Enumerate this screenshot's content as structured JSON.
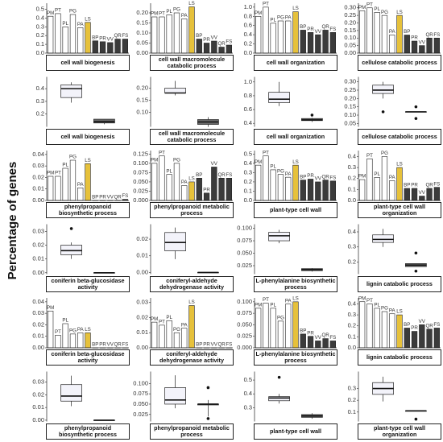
{
  "ylabel": "Percentage of genes",
  "chart_data": [
    {
      "type": "bar",
      "title": "cell wall biogenesis",
      "categories": [
        "PM",
        "PT",
        "PL",
        "PG",
        "PA",
        "LS",
        "BP",
        "PR",
        "VV",
        "QR",
        "FS"
      ],
      "values": [
        0.42,
        0.45,
        0.3,
        0.44,
        0.29,
        0.35,
        0.14,
        0.13,
        0.12,
        0.16,
        0.16
      ],
      "colors": [
        "#ffffff",
        "#ffffff",
        "#ffffff",
        "#ffffff",
        "#ffffff",
        "#e6c13b",
        "#3b3b3b",
        "#3b3b3b",
        "#3b3b3b",
        "#3b3b3b",
        "#3b3b3b"
      ],
      "ylim": [
        0,
        0.55
      ],
      "yticks": [
        {
          "value": 0,
          "label": "0.0"
        },
        0.1,
        0.2,
        0.3,
        0.4,
        0.5
      ]
    },
    {
      "type": "bar",
      "title": "cell wall macromolecule catabolic process",
      "categories": [
        "PM",
        "PT",
        "PL",
        "PG",
        "PA",
        "LS",
        "BP",
        "PR",
        "VV",
        "QR",
        "FS"
      ],
      "values": [
        0.18,
        0.18,
        0.19,
        0.2,
        0.17,
        0.23,
        0.07,
        0.05,
        0.06,
        0.03,
        0.04
      ],
      "colors": [
        "#ffffff",
        "#ffffff",
        "#ffffff",
        "#ffffff",
        "#ffffff",
        "#e6c13b",
        "#3b3b3b",
        "#3b3b3b",
        "#3b3b3b",
        "#3b3b3b",
        "#3b3b3b"
      ],
      "ylim": [
        0,
        0.24
      ],
      "yticks": [
        {
          "value": 0,
          "label": "0.00"
        },
        0.05,
        {
          "value": 0.1,
          "label": "0.10"
        },
        0.15,
        {
          "value": 0.2,
          "label": "0.20"
        }
      ]
    },
    {
      "type": "bar",
      "title": "cell wall organization",
      "categories": [
        "PM",
        "PT",
        "PL",
        "PG",
        "PA",
        "LS",
        "BP",
        "PR",
        "VV",
        "QR",
        "FS"
      ],
      "values": [
        0.8,
        1.0,
        0.65,
        0.7,
        0.7,
        0.9,
        0.5,
        0.45,
        0.4,
        0.5,
        0.45
      ],
      "colors": [
        "#ffffff",
        "#ffffff",
        "#ffffff",
        "#ffffff",
        "#ffffff",
        "#e6c13b",
        "#3b3b3b",
        "#3b3b3b",
        "#3b3b3b",
        "#3b3b3b",
        "#3b3b3b"
      ],
      "ylim": [
        0,
        1.05
      ],
      "yticks": [
        {
          "value": 0,
          "label": "0.0"
        },
        0.2,
        0.4,
        0.6,
        0.8,
        {
          "value": 1,
          "label": "1.0"
        }
      ]
    },
    {
      "type": "bar",
      "title": "cellulose catabolic process",
      "categories": [
        "PM",
        "PT",
        "PL",
        "PG",
        "PA",
        "LS",
        "BP",
        "PR",
        "VV",
        "QR",
        "FS"
      ],
      "values": [
        0.28,
        0.3,
        0.27,
        0.25,
        0.12,
        0.25,
        0.12,
        0.08,
        0.05,
        0.1,
        0.1
      ],
      "colors": [
        "#ffffff",
        "#ffffff",
        "#ffffff",
        "#ffffff",
        "#ffffff",
        "#e6c13b",
        "#3b3b3b",
        "#3b3b3b",
        "#3b3b3b",
        "#3b3b3b",
        "#3b3b3b"
      ],
      "ylim": [
        0,
        0.32
      ],
      "yticks": [
        {
          "value": 0,
          "label": "0.00"
        },
        0.05,
        {
          "value": 0.1,
          "label": "0.10"
        },
        0.15,
        {
          "value": 0.2,
          "label": "0.20"
        },
        0.25,
        {
          "value": 0.3,
          "label": "0.30"
        }
      ]
    },
    {
      "type": "box",
      "title": "cell wall biogenesis",
      "boxes": [
        {
          "color": "#f3f3fa",
          "min": 0.29,
          "q1": 0.33,
          "median": 0.4,
          "q3": 0.43,
          "max": 0.45,
          "outliers": []
        },
        {
          "color": "#6b6b6b",
          "min": 0.12,
          "q1": 0.13,
          "median": 0.14,
          "q3": 0.16,
          "max": 0.16,
          "outliers": []
        }
      ],
      "ylim": [
        0.1,
        0.48
      ],
      "yticks": [
        0.2,
        0.3,
        0.4
      ]
    },
    {
      "type": "box",
      "title": "cell wall macromolecule catabolic process",
      "boxes": [
        {
          "color": "#f3f3fa",
          "min": 0.17,
          "q1": 0.18,
          "median": 0.18,
          "q3": 0.2,
          "max": 0.23,
          "outliers": []
        },
        {
          "color": "#6b6b6b",
          "min": 0.04,
          "q1": 0.05,
          "median": 0.06,
          "q3": 0.07,
          "max": 0.08,
          "outliers": []
        }
      ],
      "ylim": [
        0.04,
        0.24
      ],
      "yticks": [
        {
          "value": 0.1,
          "label": "0.10"
        },
        0.15,
        {
          "value": 0.2,
          "label": "0.20"
        }
      ]
    },
    {
      "type": "box",
      "title": "cell wall organization",
      "boxes": [
        {
          "color": "#f3f3fa",
          "min": 0.65,
          "q1": 0.7,
          "median": 0.75,
          "q3": 0.85,
          "max": 1.0,
          "outliers": []
        },
        {
          "color": "#6b6b6b",
          "min": 0.42,
          "q1": 0.44,
          "median": 0.45,
          "q3": 0.47,
          "max": 0.48,
          "outliers": [
            0.52
          ]
        }
      ],
      "ylim": [
        0.35,
        1.05
      ],
      "yticks": [
        0.4,
        0.6,
        0.8,
        {
          "value": 1,
          "label": "1.0"
        }
      ]
    },
    {
      "type": "box",
      "title": "cellulose catabolic process",
      "boxes": [
        {
          "color": "#f3f3fa",
          "min": 0.2,
          "q1": 0.23,
          "median": 0.25,
          "q3": 0.28,
          "max": 0.3,
          "outliers": [
            0.12
          ]
        },
        {
          "color": "#6b6b6b",
          "min": 0.12,
          "q1": 0.12,
          "median": 0.12,
          "q3": 0.12,
          "max": 0.12,
          "outliers": [
            0.08,
            0.15
          ]
        }
      ],
      "ylim": [
        0.03,
        0.32
      ],
      "yticks": [
        0.05,
        {
          "value": 0.1,
          "label": "0.10"
        },
        0.15,
        {
          "value": 0.2,
          "label": "0.20"
        },
        0.25,
        {
          "value": 0.3,
          "label": "0.30"
        }
      ]
    },
    {
      "type": "bar",
      "title": "phenylpropanoid biosynthetic process",
      "categories": [
        "PM",
        "PT",
        "PL",
        "PG",
        "PA",
        "LS",
        "BP",
        "PR",
        "VV",
        "QR",
        "FS"
      ],
      "values": [
        0.021,
        0.021,
        0.028,
        0.035,
        0.011,
        0.032,
        0,
        0,
        0,
        0,
        0.001
      ],
      "colors": [
        "#ffffff",
        "#ffffff",
        "#ffffff",
        "#ffffff",
        "#ffffff",
        "#e6c13b",
        "#3b3b3b",
        "#3b3b3b",
        "#3b3b3b",
        "#3b3b3b",
        "#3b3b3b"
      ],
      "ylim": [
        0,
        0.042
      ],
      "yticks": [
        {
          "value": 0,
          "label": "0.00"
        },
        0.01,
        0.02,
        0.03,
        0.04
      ]
    },
    {
      "type": "bar",
      "title": "phenylpropanoid metabolic process",
      "categories": [
        "PM",
        "PT",
        "PL",
        "PG",
        "PA",
        "LS",
        "BP",
        "PR",
        "VV",
        "QR",
        "FS"
      ],
      "values": [
        0.1,
        0.12,
        0.07,
        0.1,
        0.04,
        0.05,
        0.06,
        0.02,
        0.09,
        0.06,
        0.06
      ],
      "colors": [
        "#ffffff",
        "#ffffff",
        "#ffffff",
        "#ffffff",
        "#ffffff",
        "#e6c13b",
        "#3b3b3b",
        "#3b3b3b",
        "#3b3b3b",
        "#3b3b3b",
        "#3b3b3b"
      ],
      "ylim": [
        0,
        0.13
      ],
      "yticks": [
        {
          "value": 0,
          "label": "0.000"
        },
        0.025,
        {
          "value": 0.05,
          "label": "0.050"
        },
        0.075,
        {
          "value": 0.1,
          "label": "0.100"
        },
        0.125
      ]
    },
    {
      "type": "bar",
      "title": "plant-type cell wall",
      "categories": [
        "PM",
        "PT",
        "PL",
        "PG",
        "PA",
        "LS",
        "BP",
        "PR",
        "VV",
        "QR",
        "FS"
      ],
      "values": [
        0.38,
        0.48,
        0.33,
        0.28,
        0.25,
        0.38,
        0.22,
        0.23,
        0.2,
        0.22,
        0.21
      ],
      "colors": [
        "#ffffff",
        "#ffffff",
        "#ffffff",
        "#ffffff",
        "#ffffff",
        "#e6c13b",
        "#3b3b3b",
        "#3b3b3b",
        "#3b3b3b",
        "#3b3b3b",
        "#3b3b3b"
      ],
      "ylim": [
        0,
        0.52
      ],
      "yticks": [
        {
          "value": 0,
          "label": "0.0"
        },
        0.1,
        0.2,
        0.3,
        0.4,
        0.5
      ]
    },
    {
      "type": "bar",
      "title": "plant-type cell wall organization",
      "categories": [
        "PM",
        "PT",
        "PL",
        "PG",
        "PA",
        "LS",
        "BP",
        "PR",
        "VV",
        "QR",
        "FS"
      ],
      "values": [
        0.19,
        0.38,
        0.21,
        0.4,
        0.18,
        0.3,
        0.11,
        0.11,
        0.04,
        0.11,
        0.12
      ],
      "colors": [
        "#ffffff",
        "#ffffff",
        "#ffffff",
        "#ffffff",
        "#ffffff",
        "#e6c13b",
        "#3b3b3b",
        "#3b3b3b",
        "#3b3b3b",
        "#3b3b3b",
        "#3b3b3b"
      ],
      "ylim": [
        0,
        0.44
      ],
      "yticks": [
        {
          "value": 0,
          "label": "0.0"
        },
        0.1,
        0.2,
        0.3,
        0.4
      ]
    },
    {
      "type": "box",
      "title": "coniferin beta-glucosidase activity",
      "boxes": [
        {
          "color": "#f3f3fa",
          "min": 0.01,
          "q1": 0.013,
          "median": 0.016,
          "q3": 0.02,
          "max": 0.022,
          "outliers": [
            0.032
          ]
        },
        {
          "color": "#6b6b6b",
          "min": 0,
          "q1": 0,
          "median": 0,
          "q3": 0,
          "max": 0,
          "outliers": []
        }
      ],
      "ylim": [
        -0.001,
        0.034
      ],
      "yticks": [
        {
          "value": 0,
          "label": "0.00"
        },
        0.01,
        0.02,
        0.03
      ]
    },
    {
      "type": "box",
      "title": "coniferyl-aldehyde dehydrogenase activity",
      "boxes": [
        {
          "color": "#f3f3fa",
          "min": 0.008,
          "q1": 0.013,
          "median": 0.018,
          "q3": 0.024,
          "max": 0.027,
          "outliers": []
        },
        {
          "color": "#6b6b6b",
          "min": 0,
          "q1": 0,
          "median": 0,
          "q3": 0,
          "max": 0,
          "outliers": []
        }
      ],
      "ylim": [
        -0.001,
        0.028
      ],
      "yticks": [
        {
          "value": 0,
          "label": "0.00"
        },
        0.01,
        0.02
      ]
    },
    {
      "type": "box",
      "title": "L-phenylalanine biosynthetic process",
      "boxes": [
        {
          "color": "#f3f3fa",
          "min": 0.07,
          "q1": 0.075,
          "median": 0.085,
          "q3": 0.092,
          "max": 0.097,
          "outliers": []
        },
        {
          "color": "#6b6b6b",
          "min": 0.013,
          "q1": 0.015,
          "median": 0.017,
          "q3": 0.019,
          "max": 0.02,
          "outliers": []
        }
      ],
      "ylim": [
        0.008,
        0.105
      ],
      "yticks": [
        0.025,
        {
          "value": 0.05,
          "label": "0.050"
        },
        0.075,
        {
          "value": 0.1,
          "label": "0.100"
        }
      ]
    },
    {
      "type": "box",
      "title": "lignin catabolic process",
      "boxes": [
        {
          "color": "#f3f3fa",
          "min": 0.3,
          "q1": 0.33,
          "median": 0.35,
          "q3": 0.38,
          "max": 0.42,
          "outliers": []
        },
        {
          "color": "#6b6b6b",
          "min": 0.17,
          "q1": 0.17,
          "median": 0.18,
          "q3": 0.19,
          "max": 0.19,
          "outliers": [
            0.26,
            0.14
          ]
        }
      ],
      "ylim": [
        0.12,
        0.44
      ],
      "yticks": [
        0.2,
        0.3,
        0.4
      ]
    },
    {
      "type": "bar",
      "title": "coniferin beta-glucosidase activity",
      "categories": [
        "PM",
        "PT",
        "PL",
        "PG",
        "PA",
        "LS",
        "BP",
        "PR",
        "VV",
        "QR",
        "FS"
      ],
      "values": [
        0.032,
        0.011,
        0.021,
        0.012,
        0.013,
        0.013,
        0,
        0,
        0,
        0,
        0
      ],
      "colors": [
        "#ffffff",
        "#ffffff",
        "#ffffff",
        "#ffffff",
        "#ffffff",
        "#e6c13b",
        "#3b3b3b",
        "#3b3b3b",
        "#3b3b3b",
        "#3b3b3b",
        "#3b3b3b"
      ],
      "ylim": [
        0,
        0.042
      ],
      "yticks": [
        {
          "value": 0,
          "label": "0.00"
        },
        0.01,
        0.02,
        0.03,
        0.04
      ]
    },
    {
      "type": "bar",
      "title": "coniferyl-aldehyde dehydrogenase activity",
      "categories": [
        "PM",
        "PT",
        "PL",
        "PG",
        "PA",
        "LS",
        "BP",
        "PR",
        "VV",
        "QR",
        "FS"
      ],
      "values": [
        0.017,
        0.015,
        0.018,
        0.01,
        0.013,
        0.028,
        0,
        0,
        0,
        0,
        0
      ],
      "colors": [
        "#ffffff",
        "#ffffff",
        "#ffffff",
        "#ffffff",
        "#ffffff",
        "#e6c13b",
        "#3b3b3b",
        "#3b3b3b",
        "#3b3b3b",
        "#3b3b3b",
        "#3b3b3b"
      ],
      "ylim": [
        0,
        0.032
      ],
      "yticks": [
        {
          "value": 0,
          "label": "0.00"
        },
        0.01,
        0.02,
        0.03
      ]
    },
    {
      "type": "bar",
      "title": "L-phenylalanine biosynthetic process",
      "categories": [
        "PM",
        "PT",
        "PL",
        "PG",
        "PA",
        "LS",
        "BP",
        "PR",
        "VV",
        "QR",
        "FS"
      ],
      "values": [
        0.086,
        0.097,
        0.086,
        0.058,
        0.095,
        0.1,
        0.03,
        0.025,
        0.015,
        0.02,
        0.015
      ],
      "colors": [
        "#ffffff",
        "#ffffff",
        "#ffffff",
        "#ffffff",
        "#ffffff",
        "#e6c13b",
        "#3b3b3b",
        "#3b3b3b",
        "#3b3b3b",
        "#3b3b3b",
        "#3b3b3b"
      ],
      "ylim": [
        0,
        0.105
      ],
      "yticks": [
        {
          "value": 0,
          "label": "0.000"
        },
        0.025,
        {
          "value": 0.05,
          "label": "0.050"
        },
        0.075,
        {
          "value": 0.1,
          "label": "0.100"
        }
      ]
    },
    {
      "type": "bar",
      "title": "lignin catabolic process",
      "categories": [
        "PM",
        "PT",
        "PL",
        "PG",
        "PA",
        "LS",
        "BP",
        "PR",
        "VV",
        "QR",
        "FS"
      ],
      "values": [
        0.42,
        0.4,
        0.36,
        0.33,
        0.31,
        0.3,
        0.18,
        0.15,
        0.21,
        0.17,
        0.18
      ],
      "colors": [
        "#ffffff",
        "#ffffff",
        "#ffffff",
        "#ffffff",
        "#ffffff",
        "#e6c13b",
        "#3b3b3b",
        "#3b3b3b",
        "#3b3b3b",
        "#3b3b3b",
        "#3b3b3b"
      ],
      "ylim": [
        0,
        0.44
      ],
      "yticks": [
        {
          "value": 0,
          "label": "0.0"
        },
        0.1,
        0.2,
        0.3,
        0.4
      ]
    },
    {
      "type": "box",
      "title": "phenylpropanoid biosynthetic process",
      "boxes": [
        {
          "color": "#f3f3fa",
          "min": 0.011,
          "q1": 0.015,
          "median": 0.019,
          "q3": 0.028,
          "max": 0.035,
          "outliers": []
        },
        {
          "color": "#6b6b6b",
          "min": 0,
          "q1": 0,
          "median": 0,
          "q3": 0,
          "max": 0,
          "outliers": []
        }
      ],
      "ylim": [
        -0.001,
        0.037
      ],
      "yticks": [
        {
          "value": 0,
          "label": "0.00"
        },
        0.01,
        0.02,
        0.03
      ]
    },
    {
      "type": "box",
      "title": "phenylpropanoid metabolic process",
      "boxes": [
        {
          "color": "#f3f3fa",
          "min": 0.04,
          "q1": 0.05,
          "median": 0.06,
          "q3": 0.09,
          "max": 0.12,
          "outliers": []
        },
        {
          "color": "#6b6b6b",
          "min": 0.02,
          "q1": 0.048,
          "median": 0.05,
          "q3": 0.05,
          "max": 0.06,
          "outliers": [
            0.09,
            0.015
          ]
        }
      ],
      "ylim": [
        0.008,
        0.125
      ],
      "yticks": [
        0.025,
        {
          "value": 0.05,
          "label": "0.050"
        },
        0.075,
        {
          "value": 0.1,
          "label": "0.100"
        }
      ]
    },
    {
      "type": "box",
      "title": "plant-type cell wall",
      "boxes": [
        {
          "color": "#f3f3fa",
          "min": 0.33,
          "q1": 0.35,
          "median": 0.37,
          "q3": 0.38,
          "max": 0.4,
          "outliers": [
            0.52
          ]
        },
        {
          "color": "#6b6b6b",
          "min": 0.22,
          "q1": 0.23,
          "median": 0.24,
          "q3": 0.25,
          "max": 0.26,
          "outliers": []
        }
      ],
      "ylim": [
        0.2,
        0.55
      ],
      "yticks": [
        0.3,
        0.4,
        0.5
      ]
    },
    {
      "type": "box",
      "title": "plant-type cell wall organization",
      "boxes": [
        {
          "color": "#f3f3fa",
          "min": 0.19,
          "q1": 0.25,
          "median": 0.3,
          "q3": 0.35,
          "max": 0.4,
          "outliers": []
        },
        {
          "color": "#6b6b6b",
          "min": 0.11,
          "q1": 0.11,
          "median": 0.11,
          "q3": 0.11,
          "max": 0.11,
          "outliers": [
            0.04
          ]
        }
      ],
      "ylim": [
        0.02,
        0.43
      ],
      "yticks": [
        0.1,
        0.2,
        0.3
      ]
    }
  ]
}
